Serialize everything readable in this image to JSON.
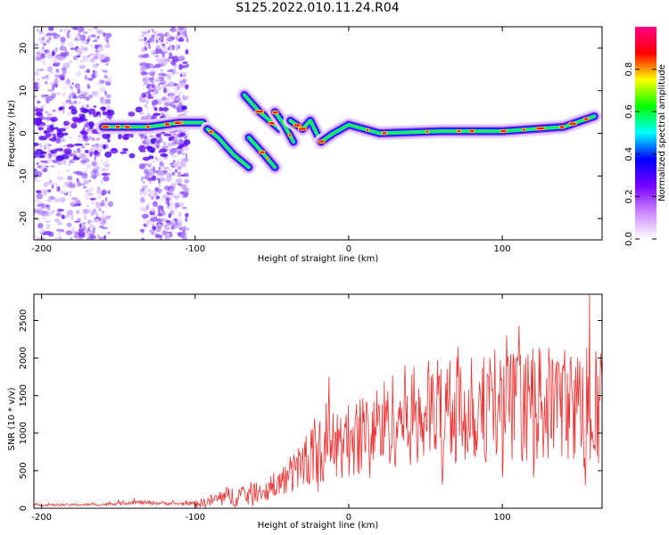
{
  "title": "S125.2022.010.11.24.R04",
  "chart_data": [
    {
      "type": "heatmap",
      "xlabel": "Height of straight line (km)",
      "ylabel": "Frequency (Hz)",
      "xlim": [
        -205,
        165
      ],
      "ylim": [
        -25,
        25
      ],
      "xticks": [
        -200,
        -100,
        0,
        100
      ],
      "yticks": [
        20,
        10,
        0,
        -10,
        -20
      ],
      "colorbar": {
        "label": "Normalized spectral amplitude",
        "range": [
          0,
          1
        ],
        "ticks": [
          "0.0",
          "0.2",
          "0.4",
          "0.6",
          "0.8"
        ],
        "colors": [
          "#ffffff",
          "#cc88ff",
          "#7700ff",
          "#0000ff",
          "#00ffff",
          "#00ff00",
          "#ffff00",
          "#ff0000",
          "#ff0088"
        ]
      },
      "ridges": [
        {
          "x": [
            -160,
            -130,
            -110,
            -95
          ],
          "y": [
            1.5,
            1.5,
            2.5,
            2.5
          ]
        },
        {
          "x": [
            -92,
            -85,
            -75,
            -65
          ],
          "y": [
            1,
            -1,
            -5,
            -8
          ]
        },
        {
          "x": [
            -68,
            -58,
            -45
          ],
          "y": [
            9,
            5,
            1
          ]
        },
        {
          "x": [
            -65,
            -55,
            -48
          ],
          "y": [
            -1,
            -5,
            -8
          ]
        },
        {
          "x": [
            -48,
            -42,
            -36
          ],
          "y": [
            5,
            2,
            -2
          ]
        },
        {
          "x": [
            -38,
            -30,
            -25,
            -18
          ],
          "y": [
            3,
            1,
            3,
            -2
          ]
        },
        {
          "x": [
            -18,
            -10,
            0,
            20,
            60,
            100,
            140,
            160
          ],
          "y": [
            -2,
            0,
            2,
            0,
            0.5,
            0.5,
            1.5,
            4
          ]
        }
      ]
    },
    {
      "type": "line",
      "xlabel": "Height of straight line (km)",
      "ylabel": "SNR (10 * v/v)",
      "xlim": [
        -205,
        165
      ],
      "ylim": [
        0,
        2850
      ],
      "xticks": [
        -200,
        -100,
        0,
        100
      ],
      "yticks": [
        0,
        500,
        1000,
        1500,
        2000,
        2500
      ],
      "color": "#ee3333",
      "trend": {
        "x": [
          -205,
          -160,
          -140,
          -110,
          -95,
          -80,
          -65,
          -50,
          -35,
          -25,
          -15,
          0,
          10,
          20,
          30,
          40,
          60,
          80,
          100,
          120,
          140,
          150,
          160,
          165
        ],
        "y": [
          40,
          50,
          80,
          60,
          70,
          150,
          180,
          250,
          500,
          700,
          800,
          900,
          1000,
          1100,
          1200,
          1250,
          1300,
          1320,
          1350,
          1380,
          1400,
          1350,
          1300,
          1300
        ]
      },
      "spikes": [
        {
          "x": 157,
          "y": 2850
        },
        {
          "x": -13,
          "y": 1750
        },
        {
          "x": 103,
          "y": 2300
        },
        {
          "x": 64,
          "y": 1850
        },
        {
          "x": 92,
          "y": 2000
        },
        {
          "x": 125,
          "y": 2100
        },
        {
          "x": 136,
          "y": 1950
        },
        {
          "x": 154,
          "y": 300
        },
        {
          "x": 148,
          "y": 1880
        },
        {
          "x": 80,
          "y": 2000
        }
      ]
    }
  ]
}
